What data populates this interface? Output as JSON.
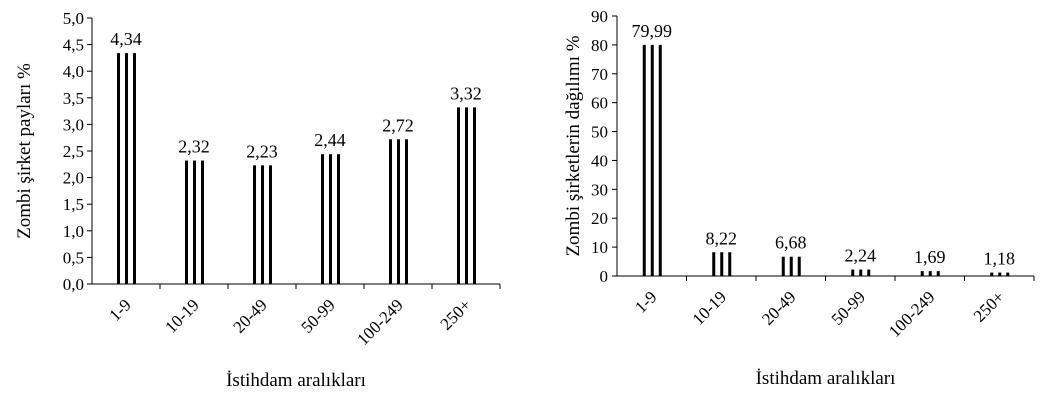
{
  "chart_data": [
    {
      "type": "bar",
      "categories": [
        "1-9",
        "10-19",
        "20-49",
        "50-99",
        "100-249",
        "250+"
      ],
      "values": [
        4.34,
        2.32,
        2.23,
        2.44,
        2.72,
        3.32
      ],
      "value_labels": [
        "4,34",
        "2,32",
        "2,23",
        "2,44",
        "2,72",
        "3,32"
      ],
      "yticks": [
        "0,0",
        "0,5",
        "1,0",
        "1,5",
        "2,0",
        "2,5",
        "3,0",
        "3,5",
        "4,0",
        "4,5",
        "5,0"
      ],
      "ylim": [
        0,
        5
      ],
      "xlabel": "İstihdam aralıkları",
      "ylabel": "Zombi şirket payları %",
      "grid": false,
      "legend": "none",
      "bar_style": "vertical black stripes on white",
      "color": "#000000"
    },
    {
      "type": "bar",
      "categories": [
        "1-9",
        "10-19",
        "20-49",
        "50-99",
        "100-249",
        "250+"
      ],
      "values": [
        79.99,
        8.22,
        6.68,
        2.24,
        1.69,
        1.18
      ],
      "value_labels": [
        "79,99",
        "8,22",
        "6,68",
        "2,24",
        "1,69",
        "1,18"
      ],
      "yticks": [
        "0",
        "10",
        "20",
        "30",
        "40",
        "50",
        "60",
        "70",
        "80",
        "90"
      ],
      "ylim": [
        0,
        90
      ],
      "xlabel": "İstihdam aralıkları",
      "ylabel": "Zombi şirketlerin dağılımı %",
      "grid": false,
      "legend": "none",
      "bar_style": "vertical black stripes on white",
      "color": "#000000"
    }
  ]
}
